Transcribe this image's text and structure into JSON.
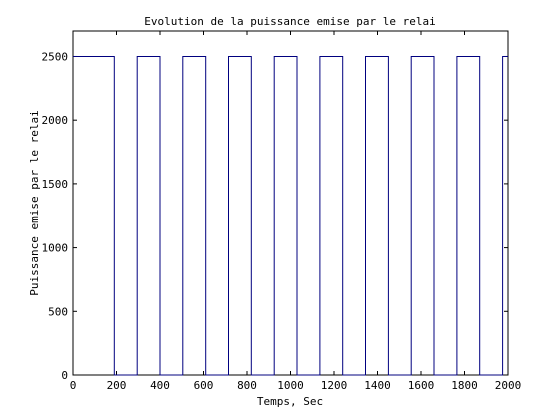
{
  "chart_data": {
    "type": "line",
    "title": "Evolution de la puissance emise par le relai",
    "xlabel": "Temps, Sec",
    "ylabel": "Puissance emise par le relai",
    "xlim": [
      0,
      2000
    ],
    "ylim": [
      0,
      2700
    ],
    "xticks": [
      0,
      200,
      400,
      600,
      800,
      1000,
      1200,
      1400,
      1600,
      1800,
      2000
    ],
    "yticks": [
      0,
      500,
      1000,
      1500,
      2000,
      2500
    ],
    "grid": false,
    "line_color": "#00007f",
    "series": [
      {
        "x": [
          0,
          190,
          190,
          295,
          295,
          400,
          400,
          505,
          505,
          610,
          610,
          715,
          715,
          820,
          820,
          925,
          925,
          1030,
          1030,
          1135,
          1135,
          1240,
          1240,
          1345,
          1345,
          1450,
          1450,
          1555,
          1555,
          1660,
          1660,
          1765,
          1765,
          1870,
          1870,
          1975,
          1975,
          2000
        ],
        "y": [
          2500,
          2500,
          0,
          0,
          2500,
          2500,
          0,
          0,
          2500,
          2500,
          0,
          0,
          2500,
          2500,
          0,
          0,
          2500,
          2500,
          0,
          0,
          2500,
          2500,
          0,
          0,
          2500,
          2500,
          0,
          0,
          2500,
          2500,
          0,
          0,
          2500,
          2500,
          0,
          0,
          2500,
          2500
        ]
      }
    ]
  }
}
